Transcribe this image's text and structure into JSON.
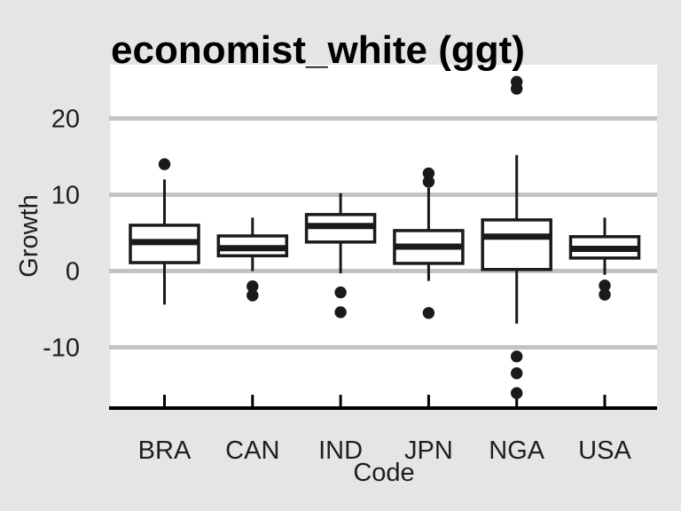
{
  "title": "economist_white (ggt)",
  "chart_data": {
    "type": "boxplot",
    "title": "economist_white (ggt)",
    "xlabel": "Code",
    "ylabel": "Growth",
    "categories": [
      "BRA",
      "CAN",
      "IND",
      "JPN",
      "NGA",
      "USA"
    ],
    "y_ticks": [
      20,
      10,
      0,
      -10
    ],
    "ylim": [
      -17.8,
      27.0
    ],
    "grid": "horizontal-only",
    "legend": "none",
    "series": [
      {
        "category": "BRA",
        "whisker_low": -4.4,
        "q1": 1.1,
        "median": 3.8,
        "q3": 6.0,
        "whisker_high": 12.0,
        "outliers": [
          14.0
        ]
      },
      {
        "category": "CAN",
        "whisker_low": 0.0,
        "q1": 2.0,
        "median": 3.0,
        "q3": 4.6,
        "whisker_high": 7.0,
        "outliers": [
          -2.0,
          -3.2
        ]
      },
      {
        "category": "IND",
        "whisker_low": -0.3,
        "q1": 3.8,
        "median": 5.9,
        "q3": 7.4,
        "whisker_high": 10.2,
        "outliers": [
          -2.8,
          -5.4
        ]
      },
      {
        "category": "JPN",
        "whisker_low": -1.3,
        "q1": 1.0,
        "median": 3.2,
        "q3": 5.3,
        "whisker_high": 10.9,
        "outliers": [
          12.8,
          11.7,
          -5.5
        ]
      },
      {
        "category": "NGA",
        "whisker_low": -6.9,
        "q1": 0.2,
        "median": 4.5,
        "q3": 6.7,
        "whisker_high": 15.2,
        "outliers": [
          24.8,
          23.9,
          -11.2,
          -13.4,
          -16.0
        ]
      },
      {
        "category": "USA",
        "whisker_low": -0.5,
        "q1": 1.7,
        "median": 2.9,
        "q3": 4.5,
        "whisker_high": 7.0,
        "outliers": [
          -1.9,
          -3.1
        ]
      }
    ],
    "colors": {
      "background": "#e5e5e5",
      "panel_background": "#ffffff",
      "gridline": "#c3c3c3",
      "axis_line": "#000000",
      "box_stroke": "#1a1a1a",
      "box_fill": "#ffffff",
      "outlier": "#1a1a1a",
      "text": "#1e1e1e",
      "title_color": "#000000"
    }
  }
}
